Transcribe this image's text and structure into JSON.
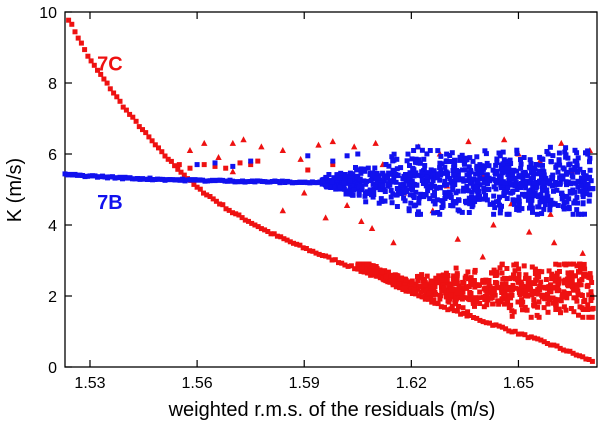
{
  "chart_data": {
    "type": "scatter",
    "title": "",
    "xlabel": "weighted r.m.s. of the residuals (m/s)",
    "ylabel": "K (m/s)",
    "xlim": [
      1.523,
      1.672
    ],
    "ylim": [
      0,
      10
    ],
    "x_ticks": [
      "1.53",
      "1.56",
      "1.59",
      "1.62",
      "1.65"
    ],
    "y_ticks": [
      "0",
      "2",
      "4",
      "6",
      "8",
      "10"
    ],
    "grid": false,
    "series": [
      {
        "name": "7C",
        "color": "#ee1111",
        "marker": "square",
        "curve_points": [
          [
            1.524,
            9.8
          ],
          [
            1.53,
            8.65
          ],
          [
            1.54,
            7.25
          ],
          [
            1.55,
            6.05
          ],
          [
            1.56,
            5.05
          ],
          [
            1.57,
            4.35
          ],
          [
            1.58,
            3.8
          ],
          [
            1.59,
            3.35
          ],
          [
            1.6,
            2.95
          ],
          [
            1.61,
            2.55
          ],
          [
            1.62,
            2.1
          ],
          [
            1.63,
            1.65
          ],
          [
            1.64,
            1.3
          ],
          [
            1.65,
            0.95
          ],
          [
            1.66,
            0.6
          ],
          [
            1.671,
            0.15
          ]
        ],
        "cluster": {
          "x_range": [
            1.605,
            1.671
          ],
          "y_range": [
            1.4,
            2.9
          ]
        },
        "scattered_points": [
          [
            1.555,
            5.7
          ],
          [
            1.558,
            5.6
          ],
          [
            1.562,
            5.7
          ],
          [
            1.565,
            5.65
          ],
          [
            1.568,
            5.6
          ],
          [
            1.572,
            5.75
          ],
          [
            1.575,
            5.7
          ],
          [
            1.577,
            5.8
          ],
          [
            1.591,
            5.55
          ],
          [
            1.598,
            5.7
          ]
        ],
        "triangles": [
          [
            1.558,
            6.1
          ],
          [
            1.562,
            6.3
          ],
          [
            1.566,
            5.9
          ],
          [
            1.57,
            6.3
          ],
          [
            1.573,
            6.4
          ],
          [
            1.578,
            6.2
          ],
          [
            1.584,
            6.1
          ],
          [
            1.589,
            5.85
          ],
          [
            1.594,
            6.25
          ],
          [
            1.598,
            6.35
          ],
          [
            1.602,
            4.55
          ],
          [
            1.606,
            4.1
          ],
          [
            1.609,
            3.9
          ],
          [
            1.604,
            6.2
          ],
          [
            1.61,
            6.3
          ],
          [
            1.615,
            3.5
          ],
          [
            1.618,
            4.9
          ],
          [
            1.622,
            6.2
          ],
          [
            1.626,
            4.4
          ],
          [
            1.63,
            5.1
          ],
          [
            1.633,
            3.6
          ],
          [
            1.636,
            6.35
          ],
          [
            1.64,
            5.4
          ],
          [
            1.643,
            4.0
          ],
          [
            1.646,
            6.4
          ],
          [
            1.65,
            6.0
          ],
          [
            1.653,
            3.8
          ],
          [
            1.656,
            5.8
          ],
          [
            1.659,
            4.3
          ],
          [
            1.662,
            6.3
          ],
          [
            1.665,
            5.5
          ],
          [
            1.668,
            3.2
          ],
          [
            1.584,
            4.4
          ],
          [
            1.59,
            4.9
          ],
          [
            1.596,
            4.2
          ],
          [
            1.612,
            5.7
          ],
          [
            1.628,
            6.0
          ],
          [
            1.648,
            4.6
          ],
          [
            1.66,
            3.5
          ],
          [
            1.67,
            6.1
          ],
          [
            1.57,
            5.5
          ],
          [
            1.64,
            3.1
          ]
        ]
      },
      {
        "name": "7B",
        "color": "#1111ee",
        "marker": "square",
        "line_points": [
          [
            1.523,
            5.42
          ],
          [
            1.54,
            5.32
          ],
          [
            1.555,
            5.27
          ],
          [
            1.56,
            5.26
          ],
          [
            1.575,
            5.23
          ],
          [
            1.59,
            5.2
          ],
          [
            1.6,
            5.19
          ]
        ],
        "cluster": {
          "x_range": [
            1.595,
            1.671
          ],
          "y_range": [
            4.3,
            6.3
          ]
        },
        "scattered_points": [
          [
            1.56,
            5.7
          ],
          [
            1.565,
            5.75
          ],
          [
            1.57,
            5.65
          ],
          [
            1.575,
            5.8
          ],
          [
            1.591,
            5.95
          ],
          [
            1.598,
            5.8
          ],
          [
            1.602,
            5.95
          ],
          [
            1.605,
            6.0
          ]
        ]
      }
    ],
    "annotations": [
      {
        "text": "7C",
        "x": 1.532,
        "y": 8.35,
        "color": "#ee1111"
      },
      {
        "text": "7B",
        "x": 1.532,
        "y": 4.45,
        "color": "#1111ee"
      }
    ]
  }
}
